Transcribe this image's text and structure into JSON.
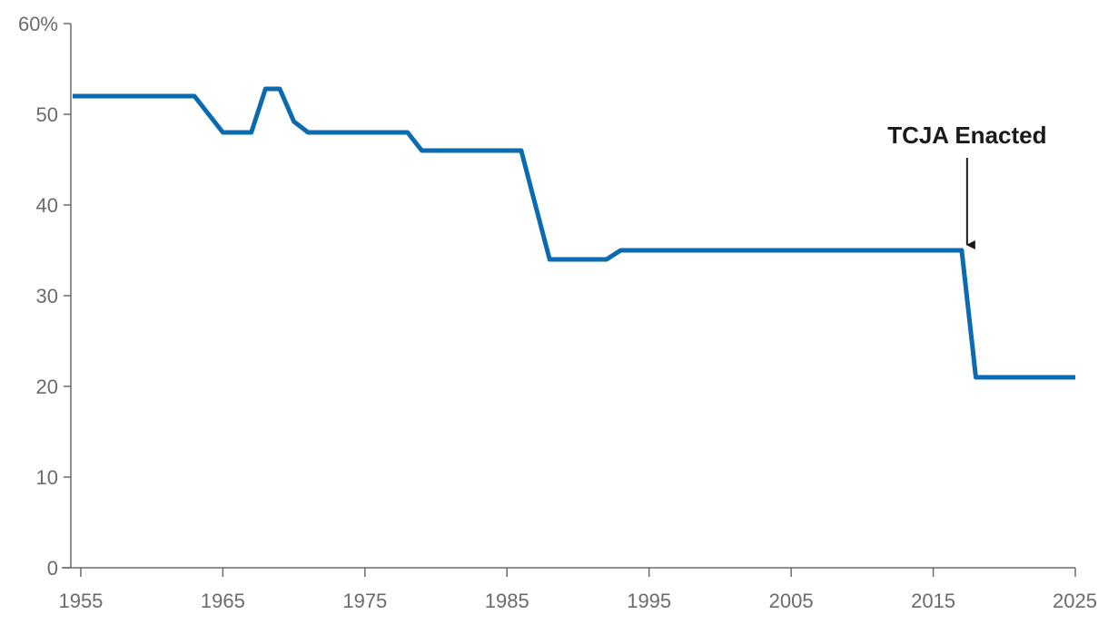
{
  "chart_data": {
    "type": "line",
    "title": "",
    "xlabel": "",
    "ylabel": "",
    "xlim": [
      1954,
      2025
    ],
    "ylim": [
      0,
      60
    ],
    "grid": false,
    "x_ticks": [
      1955,
      1965,
      1975,
      1985,
      1995,
      2005,
      2015,
      2025
    ],
    "x_tick_labels": [
      "1955",
      "1965",
      "1975",
      "1985",
      "1995",
      "2005",
      "2015",
      "2025"
    ],
    "y_ticks": [
      0,
      10,
      20,
      30,
      40,
      50,
      60
    ],
    "y_tick_labels": [
      "0",
      "10",
      "20",
      "30",
      "40",
      "50",
      "60%"
    ],
    "series": [
      {
        "color": "#0a6bb0",
        "x": [
          1954,
          1955,
          1956,
          1957,
          1958,
          1959,
          1960,
          1961,
          1962,
          1963,
          1964,
          1965,
          1966,
          1967,
          1968,
          1969,
          1970,
          1971,
          1972,
          1973,
          1974,
          1975,
          1976,
          1977,
          1978,
          1979,
          1980,
          1981,
          1982,
          1983,
          1984,
          1985,
          1986,
          1987,
          1988,
          1989,
          1990,
          1991,
          1992,
          1993,
          1994,
          1995,
          1996,
          1997,
          1998,
          1999,
          2000,
          2001,
          2002,
          2003,
          2004,
          2005,
          2006,
          2007,
          2008,
          2009,
          2010,
          2011,
          2012,
          2013,
          2014,
          2015,
          2016,
          2017,
          2018,
          2019,
          2020,
          2021,
          2022,
          2023,
          2024,
          2025
        ],
        "y": [
          52,
          52,
          52,
          52,
          52,
          52,
          52,
          52,
          52,
          52,
          50,
          48,
          48,
          48,
          52.8,
          52.8,
          49.2,
          48,
          48,
          48,
          48,
          48,
          48,
          48,
          48,
          46,
          46,
          46,
          46,
          46,
          46,
          46,
          46,
          40,
          34,
          34,
          34,
          34,
          34,
          35,
          35,
          35,
          35,
          35,
          35,
          35,
          35,
          35,
          35,
          35,
          35,
          35,
          35,
          35,
          35,
          35,
          35,
          35,
          35,
          35,
          35,
          35,
          35,
          35,
          21,
          21,
          21,
          21,
          21,
          21,
          21,
          21
        ]
      }
    ],
    "annotations": [
      {
        "text": "TCJA Enacted",
        "x": 2017,
        "y": 35
      }
    ]
  }
}
